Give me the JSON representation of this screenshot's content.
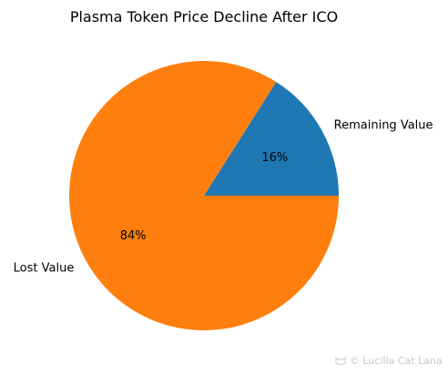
{
  "chart_data": {
    "type": "pie",
    "title": "Plasma Token Price Decline After ICO",
    "slices": [
      {
        "label": "Remaining Value",
        "value": 16,
        "pct_label": "16%",
        "color": "#1f77b4"
      },
      {
        "label": "Lost Value",
        "value": 84,
        "pct_label": "84%",
        "color": "#ff7f0e"
      }
    ],
    "start_angle_deg": 0,
    "direction": "counterclockwise"
  },
  "watermark": {
    "text": "© Lucilla Cat Lana"
  }
}
